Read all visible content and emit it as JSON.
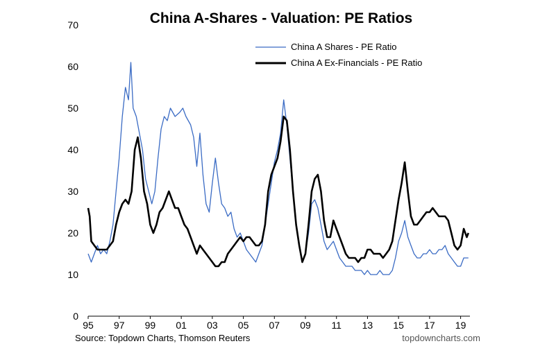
{
  "chart_data": {
    "type": "line",
    "title": "China A-Shares - Valuation: PE Ratios",
    "xlabel": "",
    "ylabel": "",
    "xlim": [
      1995.0,
      2019.6
    ],
    "ylim": [
      0,
      70
    ],
    "yticks": [
      0,
      10,
      20,
      30,
      40,
      50,
      60,
      70
    ],
    "xticks": [
      {
        "value": 1995,
        "label": "95"
      },
      {
        "value": 1997,
        "label": "97"
      },
      {
        "value": 1999,
        "label": "99"
      },
      {
        "value": 2001,
        "label": "01"
      },
      {
        "value": 2003,
        "label": "03"
      },
      {
        "value": 2005,
        "label": "05"
      },
      {
        "value": 2007,
        "label": "07"
      },
      {
        "value": 2009,
        "label": "09"
      },
      {
        "value": 2011,
        "label": "11"
      },
      {
        "value": 2013,
        "label": "13"
      },
      {
        "value": 2015,
        "label": "15"
      },
      {
        "value": 2017,
        "label": "17"
      },
      {
        "value": 2019,
        "label": "19"
      }
    ],
    "grid": false,
    "legend_position": "top-right",
    "series": [
      {
        "name": "China A Shares - PE Ratio",
        "color": "#3a6bc4",
        "points": [
          [
            1995.0,
            15
          ],
          [
            1995.2,
            13
          ],
          [
            1995.4,
            15
          ],
          [
            1995.6,
            17
          ],
          [
            1995.8,
            15
          ],
          [
            1996.0,
            16
          ],
          [
            1996.2,
            15
          ],
          [
            1996.4,
            18
          ],
          [
            1996.6,
            22
          ],
          [
            1996.8,
            30
          ],
          [
            1997.0,
            38
          ],
          [
            1997.2,
            48
          ],
          [
            1997.4,
            55
          ],
          [
            1997.6,
            52
          ],
          [
            1997.75,
            61
          ],
          [
            1997.9,
            50
          ],
          [
            1998.1,
            48
          ],
          [
            1998.3,
            44
          ],
          [
            1998.5,
            40
          ],
          [
            1998.7,
            33
          ],
          [
            1998.9,
            30
          ],
          [
            1999.1,
            27
          ],
          [
            1999.3,
            30
          ],
          [
            1999.5,
            38
          ],
          [
            1999.7,
            45
          ],
          [
            1999.9,
            48
          ],
          [
            2000.1,
            47
          ],
          [
            2000.3,
            50
          ],
          [
            2000.6,
            48
          ],
          [
            2000.9,
            49
          ],
          [
            2001.1,
            50
          ],
          [
            2001.3,
            48
          ],
          [
            2001.6,
            46
          ],
          [
            2001.8,
            43
          ],
          [
            2002.0,
            36
          ],
          [
            2002.2,
            44
          ],
          [
            2002.4,
            34
          ],
          [
            2002.6,
            27
          ],
          [
            2002.8,
            25
          ],
          [
            2003.0,
            32
          ],
          [
            2003.2,
            38
          ],
          [
            2003.4,
            32
          ],
          [
            2003.6,
            27
          ],
          [
            2003.8,
            26
          ],
          [
            2004.0,
            24
          ],
          [
            2004.2,
            25
          ],
          [
            2004.4,
            21
          ],
          [
            2004.6,
            19
          ],
          [
            2004.8,
            20
          ],
          [
            2005.0,
            18
          ],
          [
            2005.2,
            16
          ],
          [
            2005.4,
            15
          ],
          [
            2005.6,
            14
          ],
          [
            2005.8,
            13
          ],
          [
            2006.0,
            15
          ],
          [
            2006.2,
            17
          ],
          [
            2006.4,
            22
          ],
          [
            2006.6,
            27
          ],
          [
            2006.8,
            32
          ],
          [
            2007.0,
            37
          ],
          [
            2007.2,
            40
          ],
          [
            2007.4,
            44
          ],
          [
            2007.6,
            52
          ],
          [
            2007.8,
            46
          ],
          [
            2008.0,
            38
          ],
          [
            2008.2,
            30
          ],
          [
            2008.4,
            22
          ],
          [
            2008.6,
            17
          ],
          [
            2008.8,
            13
          ],
          [
            2009.0,
            15
          ],
          [
            2009.2,
            20
          ],
          [
            2009.4,
            27
          ],
          [
            2009.6,
            28
          ],
          [
            2009.8,
            26
          ],
          [
            2010.0,
            22
          ],
          [
            2010.2,
            18
          ],
          [
            2010.4,
            16
          ],
          [
            2010.6,
            17
          ],
          [
            2010.8,
            18
          ],
          [
            2011.0,
            16
          ],
          [
            2011.2,
            14
          ],
          [
            2011.4,
            13
          ],
          [
            2011.6,
            12
          ],
          [
            2011.8,
            12
          ],
          [
            2012.0,
            12
          ],
          [
            2012.2,
            11
          ],
          [
            2012.4,
            11
          ],
          [
            2012.6,
            11
          ],
          [
            2012.8,
            10
          ],
          [
            2013.0,
            11
          ],
          [
            2013.2,
            10
          ],
          [
            2013.4,
            10
          ],
          [
            2013.6,
            10
          ],
          [
            2013.8,
            11
          ],
          [
            2014.0,
            10
          ],
          [
            2014.2,
            10
          ],
          [
            2014.4,
            10
          ],
          [
            2014.6,
            11
          ],
          [
            2014.8,
            14
          ],
          [
            2015.0,
            18
          ],
          [
            2015.2,
            20
          ],
          [
            2015.4,
            23
          ],
          [
            2015.6,
            19
          ],
          [
            2015.8,
            17
          ],
          [
            2016.0,
            15
          ],
          [
            2016.2,
            14
          ],
          [
            2016.4,
            14
          ],
          [
            2016.6,
            15
          ],
          [
            2016.8,
            15
          ],
          [
            2017.0,
            16
          ],
          [
            2017.2,
            15
          ],
          [
            2017.4,
            15
          ],
          [
            2017.6,
            16
          ],
          [
            2017.8,
            16
          ],
          [
            2018.0,
            17
          ],
          [
            2018.2,
            15
          ],
          [
            2018.4,
            14
          ],
          [
            2018.6,
            13
          ],
          [
            2018.8,
            12
          ],
          [
            2019.0,
            12
          ],
          [
            2019.2,
            14
          ],
          [
            2019.4,
            14
          ],
          [
            2019.5,
            14
          ]
        ]
      },
      {
        "name": "China A Ex-Financials - PE Ratio",
        "color": "#000000",
        "points": [
          [
            1995.0,
            26
          ],
          [
            1995.1,
            24
          ],
          [
            1995.2,
            18
          ],
          [
            1995.4,
            17
          ],
          [
            1995.6,
            16
          ],
          [
            1995.8,
            16
          ],
          [
            1996.0,
            16
          ],
          [
            1996.2,
            16
          ],
          [
            1996.4,
            17
          ],
          [
            1996.6,
            18
          ],
          [
            1996.8,
            22
          ],
          [
            1997.0,
            25
          ],
          [
            1997.2,
            27
          ],
          [
            1997.4,
            28
          ],
          [
            1997.6,
            27
          ],
          [
            1997.8,
            30
          ],
          [
            1998.0,
            40
          ],
          [
            1998.2,
            43
          ],
          [
            1998.4,
            38
          ],
          [
            1998.6,
            30
          ],
          [
            1998.8,
            27
          ],
          [
            1999.0,
            22
          ],
          [
            1999.2,
            20
          ],
          [
            1999.4,
            22
          ],
          [
            1999.6,
            25
          ],
          [
            1999.8,
            26
          ],
          [
            2000.0,
            28
          ],
          [
            2000.2,
            30
          ],
          [
            2000.4,
            28
          ],
          [
            2000.6,
            26
          ],
          [
            2000.8,
            26
          ],
          [
            2001.0,
            24
          ],
          [
            2001.2,
            22
          ],
          [
            2001.4,
            21
          ],
          [
            2001.6,
            19
          ],
          [
            2001.8,
            17
          ],
          [
            2002.0,
            15
          ],
          [
            2002.2,
            17
          ],
          [
            2002.4,
            16
          ],
          [
            2002.6,
            15
          ],
          [
            2002.8,
            14
          ],
          [
            2003.0,
            13
          ],
          [
            2003.2,
            12
          ],
          [
            2003.4,
            12
          ],
          [
            2003.6,
            13
          ],
          [
            2003.8,
            13
          ],
          [
            2004.0,
            15
          ],
          [
            2004.2,
            16
          ],
          [
            2004.4,
            17
          ],
          [
            2004.6,
            18
          ],
          [
            2004.8,
            19
          ],
          [
            2005.0,
            18
          ],
          [
            2005.2,
            19
          ],
          [
            2005.4,
            19
          ],
          [
            2005.6,
            18
          ],
          [
            2005.8,
            17
          ],
          [
            2006.0,
            17
          ],
          [
            2006.2,
            18
          ],
          [
            2006.4,
            22
          ],
          [
            2006.6,
            30
          ],
          [
            2006.8,
            34
          ],
          [
            2007.0,
            36
          ],
          [
            2007.2,
            38
          ],
          [
            2007.4,
            42
          ],
          [
            2007.6,
            48
          ],
          [
            2007.8,
            47
          ],
          [
            2008.0,
            40
          ],
          [
            2008.2,
            30
          ],
          [
            2008.4,
            22
          ],
          [
            2008.6,
            17
          ],
          [
            2008.8,
            13
          ],
          [
            2009.0,
            15
          ],
          [
            2009.2,
            22
          ],
          [
            2009.4,
            30
          ],
          [
            2009.6,
            33
          ],
          [
            2009.8,
            34
          ],
          [
            2010.0,
            30
          ],
          [
            2010.2,
            23
          ],
          [
            2010.4,
            19
          ],
          [
            2010.6,
            19
          ],
          [
            2010.8,
            23
          ],
          [
            2011.0,
            21
          ],
          [
            2011.2,
            19
          ],
          [
            2011.4,
            17
          ],
          [
            2011.6,
            15
          ],
          [
            2011.8,
            14
          ],
          [
            2012.0,
            14
          ],
          [
            2012.2,
            14
          ],
          [
            2012.4,
            13
          ],
          [
            2012.6,
            14
          ],
          [
            2012.8,
            14
          ],
          [
            2013.0,
            16
          ],
          [
            2013.2,
            16
          ],
          [
            2013.4,
            15
          ],
          [
            2013.6,
            15
          ],
          [
            2013.8,
            15
          ],
          [
            2014.0,
            14
          ],
          [
            2014.2,
            15
          ],
          [
            2014.4,
            16
          ],
          [
            2014.6,
            18
          ],
          [
            2014.8,
            23
          ],
          [
            2015.0,
            28
          ],
          [
            2015.2,
            32
          ],
          [
            2015.4,
            37
          ],
          [
            2015.6,
            30
          ],
          [
            2015.8,
            24
          ],
          [
            2016.0,
            22
          ],
          [
            2016.2,
            22
          ],
          [
            2016.4,
            23
          ],
          [
            2016.6,
            24
          ],
          [
            2016.8,
            25
          ],
          [
            2017.0,
            25
          ],
          [
            2017.2,
            26
          ],
          [
            2017.4,
            25
          ],
          [
            2017.6,
            24
          ],
          [
            2017.8,
            24
          ],
          [
            2018.0,
            24
          ],
          [
            2018.2,
            23
          ],
          [
            2018.4,
            20
          ],
          [
            2018.6,
            17
          ],
          [
            2018.8,
            16
          ],
          [
            2019.0,
            17
          ],
          [
            2019.2,
            21
          ],
          [
            2019.4,
            19
          ],
          [
            2019.5,
            20
          ]
        ]
      }
    ]
  },
  "footer": {
    "source": "Source: Topdown Charts, Thomson Reuters",
    "brand": "topdowncharts.com"
  }
}
